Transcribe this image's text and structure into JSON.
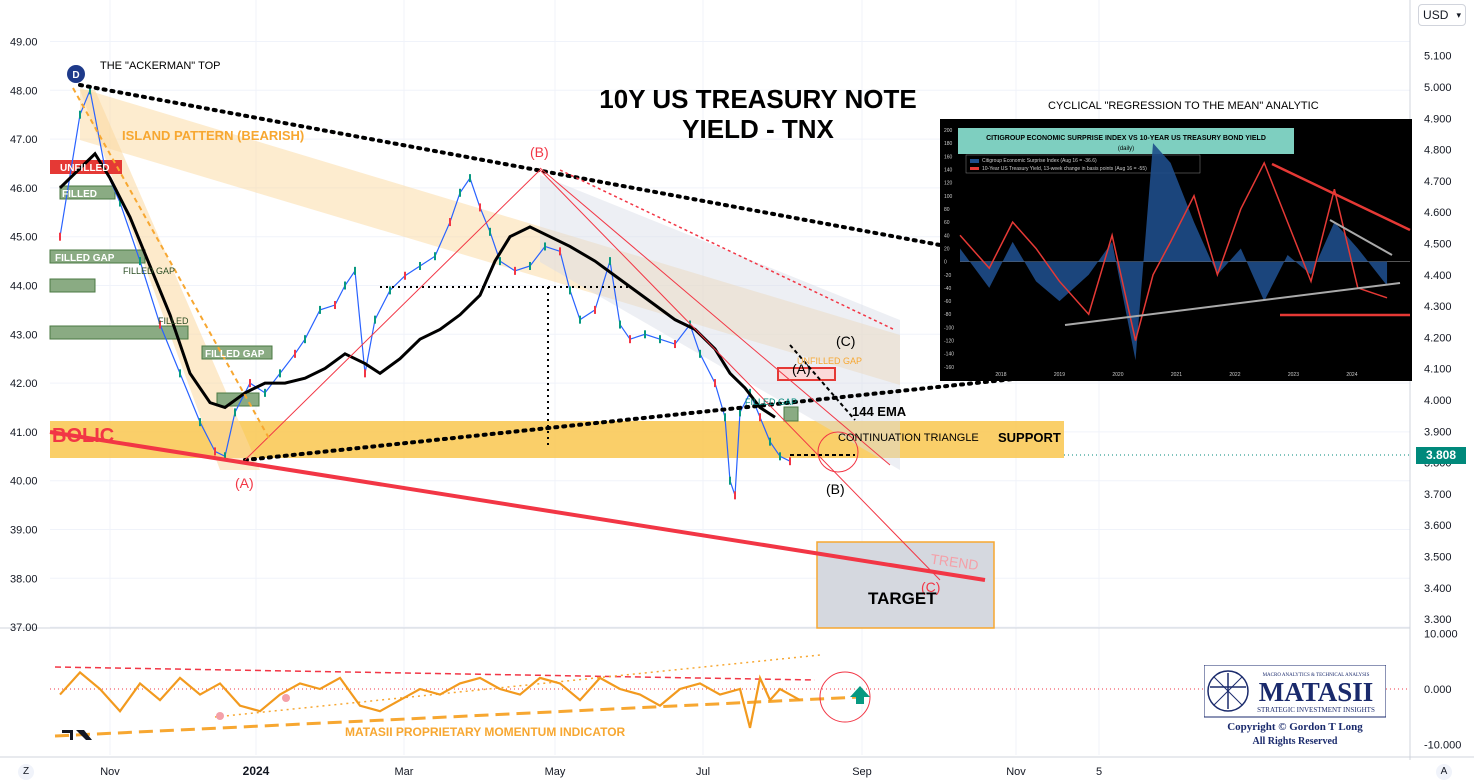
{
  "currency": "USD",
  "price_tag": "3.808",
  "corner_left": "Z",
  "corner_right": "A",
  "chart_data": [
    {
      "type": "line",
      "title": "10Y US TREASURY NOTE",
      "subtitle": "YIELD - TNX",
      "left_axis": {
        "ticks": [
          "49.00",
          "48.00",
          "47.00",
          "46.00",
          "45.00",
          "44.00",
          "43.00",
          "42.00",
          "41.00",
          "40.00",
          "39.00",
          "38.00",
          "37.00"
        ],
        "range": [
          37,
          49
        ]
      },
      "right_axis": {
        "ticks": [
          "5.100",
          "5.000",
          "4.900",
          "4.800",
          "4.700",
          "4.600",
          "4.500",
          "4.400",
          "4.300",
          "4.200",
          "4.100",
          "4.000",
          "3.900",
          "3.800",
          "3.700",
          "3.600",
          "3.500",
          "3.400",
          "3.300"
        ],
        "range": [
          3.25,
          5.18
        ]
      },
      "x_ticks": [
        "Nov",
        "2024",
        "Mar",
        "May",
        "Jul",
        "Sep",
        "Nov",
        "5"
      ],
      "series": [
        {
          "values": [
            [
              10,
              45.0
            ],
            [
              30,
              47.5
            ],
            [
              40,
              48.0
            ],
            [
              55,
              46.4
            ],
            [
              70,
              45.7
            ],
            [
              90,
              44.5
            ],
            [
              110,
              43.2
            ],
            [
              130,
              42.2
            ],
            [
              150,
              41.2
            ],
            [
              165,
              40.6
            ],
            [
              175,
              40.5
            ],
            [
              185,
              41.4
            ],
            [
              200,
              42.0
            ],
            [
              215,
              41.8
            ],
            [
              230,
              42.2
            ],
            [
              245,
              42.6
            ],
            [
              255,
              42.9
            ],
            [
              270,
              43.5
            ],
            [
              285,
              43.6
            ],
            [
              295,
              44.0
            ],
            [
              305,
              44.3
            ],
            [
              315,
              42.2
            ],
            [
              325,
              43.3
            ],
            [
              340,
              43.9
            ],
            [
              355,
              44.2
            ],
            [
              370,
              44.4
            ],
            [
              385,
              44.6
            ],
            [
              400,
              45.3
            ],
            [
              410,
              45.9
            ],
            [
              420,
              46.2
            ],
            [
              430,
              45.6
            ],
            [
              440,
              45.1
            ],
            [
              450,
              44.5
            ],
            [
              465,
              44.3
            ],
            [
              480,
              44.4
            ],
            [
              495,
              44.8
            ],
            [
              510,
              44.7
            ],
            [
              520,
              43.9
            ],
            [
              530,
              43.3
            ],
            [
              545,
              43.5
            ],
            [
              560,
              44.5
            ],
            [
              570,
              43.2
            ],
            [
              580,
              42.9
            ],
            [
              595,
              43.0
            ],
            [
              610,
              42.9
            ],
            [
              625,
              42.8
            ],
            [
              640,
              43.2
            ],
            [
              650,
              42.6
            ],
            [
              665,
              42.0
            ],
            [
              675,
              41.3
            ],
            [
              680,
              40.0
            ],
            [
              685,
              39.7
            ],
            [
              690,
              41.4
            ],
            [
              700,
              41.8
            ],
            [
              710,
              41.3
            ],
            [
              720,
              40.8
            ],
            [
              730,
              40.5
            ],
            [
              740,
              40.4
            ]
          ]
        },
        {
          "name": "144 EMA",
          "values": [
            [
              10,
              46.0
            ],
            [
              30,
              46.4
            ],
            [
              45,
              46.7
            ],
            [
              60,
              46.2
            ],
            [
              80,
              45.4
            ],
            [
              100,
              44.4
            ],
            [
              120,
              43.4
            ],
            [
              140,
              42.2
            ],
            [
              160,
              41.6
            ],
            [
              175,
              41.5
            ],
            [
              195,
              41.8
            ],
            [
              215,
              42.0
            ],
            [
              235,
              42.0
            ],
            [
              255,
              42.1
            ],
            [
              275,
              42.3
            ],
            [
              295,
              42.6
            ],
            [
              315,
              42.4
            ],
            [
              330,
              42.2
            ],
            [
              350,
              42.5
            ],
            [
              370,
              42.9
            ],
            [
              390,
              43.1
            ],
            [
              410,
              43.4
            ],
            [
              430,
              43.8
            ],
            [
              445,
              44.5
            ],
            [
              460,
              45.0
            ],
            [
              480,
              45.2
            ],
            [
              500,
              45.0
            ],
            [
              520,
              44.8
            ],
            [
              545,
              44.5
            ],
            [
              565,
              44.2
            ],
            [
              585,
              43.9
            ],
            [
              605,
              43.6
            ],
            [
              625,
              43.3
            ],
            [
              645,
              43.1
            ],
            [
              665,
              42.7
            ],
            [
              680,
              42.2
            ],
            [
              695,
              41.9
            ],
            [
              710,
              41.5
            ],
            [
              725,
              41.3
            ]
          ]
        }
      ],
      "annotations": [
        "THE \"ACKERMAN\" TOP",
        "ISLAND PATTERN (BEARISH)",
        "UNFILLED",
        "FILLED",
        "FILLED GAP",
        "FILLED GAP",
        "FILLED",
        "FILLED GAP",
        "(A)",
        "(B)",
        "(A)",
        "(C)",
        "(B)",
        "(C)",
        "144 EMA",
        "CONTINUATION TRIANGLE",
        "SUPPORT",
        "FILLED GAP",
        "UNFILLED GAP",
        "BOLIC",
        "TREND",
        "TARGET"
      ]
    },
    {
      "type": "line",
      "title": "CYCLICAL \"REGRESSION TO THE MEAN\" ANALYTIC",
      "inset_title": "CITIGROUP ECONOMIC SURPRISE INDEX VS 10-YEAR US TREASURY BOND YIELD",
      "inset_subtitle": "(daily)",
      "legend": [
        "Citigroup Economic Surprise Index (Aug 16 = -36.6)",
        "10-Year US Treasury Yield, 13-week change in basis points (Aug 16 = -55)"
      ],
      "x_ticks": [
        "2018",
        "2019",
        "2020",
        "2021",
        "2022",
        "2023",
        "2024"
      ],
      "y_ticks": [
        "200",
        "180",
        "160",
        "140",
        "120",
        "100",
        "80",
        "60",
        "40",
        "20",
        "0",
        "-20",
        "-40",
        "-60",
        "-80",
        "-100",
        "-120",
        "-140",
        "-160"
      ],
      "series": [
        {
          "name": "Citigroup Economic Surprise Index (Aug 16 = -36.6)",
          "values": [
            [
              2017.3,
              20
            ],
            [
              2017.8,
              -40
            ],
            [
              2018.2,
              30
            ],
            [
              2018.6,
              -30
            ],
            [
              2019.0,
              -60
            ],
            [
              2019.5,
              -20
            ],
            [
              2019.9,
              30
            ],
            [
              2020.3,
              -150
            ],
            [
              2020.6,
              180
            ],
            [
              2020.9,
              150
            ],
            [
              2021.3,
              60
            ],
            [
              2021.7,
              -20
            ],
            [
              2022.1,
              20
            ],
            [
              2022.5,
              -60
            ],
            [
              2022.9,
              10
            ],
            [
              2023.3,
              -20
            ],
            [
              2023.7,
              60
            ],
            [
              2024.1,
              20
            ],
            [
              2024.6,
              -36.6
            ]
          ]
        },
        {
          "name": "10-Year US Treasury Yield, 13-week change in basis points (Aug 16 = -55)",
          "values": [
            [
              2017.3,
              40
            ],
            [
              2017.8,
              -10
            ],
            [
              2018.2,
              60
            ],
            [
              2018.6,
              20
            ],
            [
              2019.0,
              -30
            ],
            [
              2019.5,
              -80
            ],
            [
              2019.9,
              40
            ],
            [
              2020.3,
              -120
            ],
            [
              2020.6,
              -20
            ],
            [
              2020.9,
              30
            ],
            [
              2021.3,
              100
            ],
            [
              2021.7,
              -20
            ],
            [
              2022.1,
              80
            ],
            [
              2022.5,
              150
            ],
            [
              2022.9,
              60
            ],
            [
              2023.3,
              -30
            ],
            [
              2023.7,
              110
            ],
            [
              2024.1,
              -40
            ],
            [
              2024.6,
              -55
            ]
          ]
        }
      ]
    },
    {
      "type": "line",
      "title": "MATASII PROPRIETARY MOMENTUM INDICATOR",
      "y_ticks": [
        "10.000",
        "0.000",
        "-10.000"
      ],
      "ylim": [
        -11,
        11
      ],
      "series": [
        {
          "values": [
            [
              10,
              -1
            ],
            [
              30,
              3
            ],
            [
              50,
              0
            ],
            [
              70,
              -4
            ],
            [
              90,
              1
            ],
            [
              110,
              -2
            ],
            [
              130,
              2
            ],
            [
              150,
              -1
            ],
            [
              170,
              1
            ],
            [
              190,
              -3
            ],
            [
              210,
              -4
            ],
            [
              230,
              -1
            ],
            [
              250,
              1
            ],
            [
              270,
              0
            ],
            [
              290,
              2
            ],
            [
              310,
              -3
            ],
            [
              330,
              -4
            ],
            [
              350,
              -2
            ],
            [
              370,
              0
            ],
            [
              390,
              -1
            ],
            [
              410,
              1
            ],
            [
              430,
              2
            ],
            [
              450,
              0
            ],
            [
              470,
              -1
            ],
            [
              490,
              2
            ],
            [
              510,
              1
            ],
            [
              530,
              -2
            ],
            [
              550,
              2
            ],
            [
              570,
              0
            ],
            [
              590,
              -1
            ],
            [
              610,
              -3
            ],
            [
              630,
              0
            ],
            [
              650,
              1
            ],
            [
              670,
              -1
            ],
            [
              690,
              0
            ],
            [
              700,
              -7
            ],
            [
              710,
              2
            ],
            [
              720,
              -2
            ],
            [
              730,
              0
            ],
            [
              740,
              -1
            ],
            [
              750,
              -2
            ]
          ]
        }
      ]
    }
  ],
  "logo": {
    "name": "MATASII",
    "top": "MACRO ANALYTICS & TECHNICAL ANALYSIS",
    "tagline": "STRATEGIC INVESTMENT INSIGHTS",
    "copyright": "Copyright © Gordon T Long",
    "rights": "All Rights Reserved"
  }
}
